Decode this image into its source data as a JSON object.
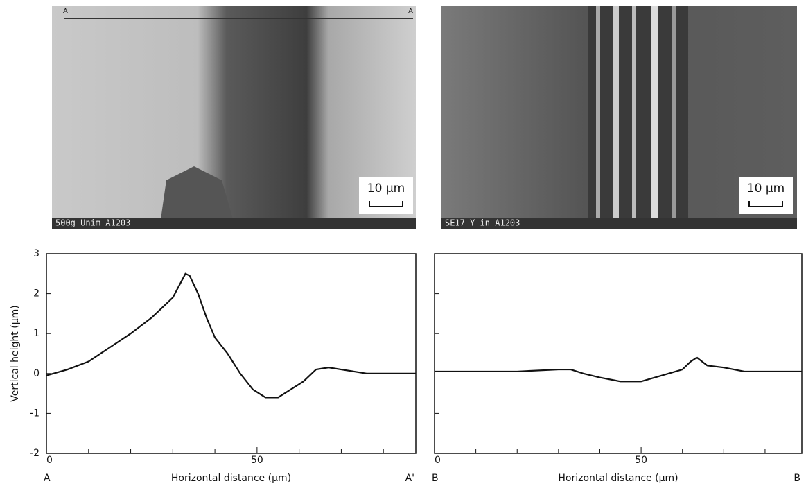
{
  "images": [
    {
      "caption": "500g Unim A1203",
      "scale_bar": "10 µm",
      "marker_left": "A",
      "marker_right": "A"
    },
    {
      "caption": "SE17 Y in A1203",
      "scale_bar": "10 µm"
    }
  ],
  "chart_data": [
    {
      "type": "line",
      "y_label": "Vertical height (µm)",
      "x_label": "Horizontal distance (µm)",
      "start_label": "A",
      "end_label": "A'",
      "xlim": [
        0,
        87.7
      ],
      "ylim": [
        -2,
        3
      ],
      "xticks": [
        0,
        50
      ],
      "yticks": [
        -2,
        -1,
        0,
        1,
        2,
        3
      ],
      "minor_xticks": [
        10,
        20,
        30,
        40,
        60,
        70,
        80
      ],
      "minor_yticks": [],
      "color": "#111111",
      "x": [
        0,
        5,
        10,
        15,
        20,
        25,
        30,
        33,
        34,
        36,
        38,
        40,
        43,
        46,
        49,
        52,
        55,
        58,
        61,
        64,
        67,
        70,
        73,
        76,
        80,
        87.7
      ],
      "values": [
        -0.05,
        0.1,
        0.3,
        0.65,
        1.0,
        1.4,
        1.9,
        2.5,
        2.45,
        2.0,
        1.4,
        0.9,
        0.5,
        0.0,
        -0.4,
        -0.6,
        -0.6,
        -0.4,
        -0.2,
        0.1,
        0.15,
        0.1,
        0.05,
        0.0,
        0.0,
        0.0
      ]
    },
    {
      "type": "line",
      "x_label": "Horizontal distance (µm)",
      "start_label": "B",
      "end_label": "B",
      "xlim": [
        0,
        88.9
      ],
      "ylim": [
        -2,
        3
      ],
      "xticks": [
        0,
        50
      ],
      "yticks": [],
      "minor_xticks": [
        10,
        20,
        30,
        40,
        60,
        70,
        80
      ],
      "minor_yticks": [
        -1,
        1,
        2
      ],
      "color": "#111111",
      "x": [
        0,
        10,
        20,
        30,
        33,
        36,
        40,
        45,
        50,
        55,
        60,
        62,
        63.5,
        66,
        70,
        75,
        80,
        88.9
      ],
      "values": [
        0.05,
        0.05,
        0.05,
        0.1,
        0.1,
        0.0,
        -0.1,
        -0.2,
        -0.2,
        -0.05,
        0.1,
        0.3,
        0.4,
        0.2,
        0.15,
        0.05,
        0.05,
        0.05
      ]
    }
  ]
}
